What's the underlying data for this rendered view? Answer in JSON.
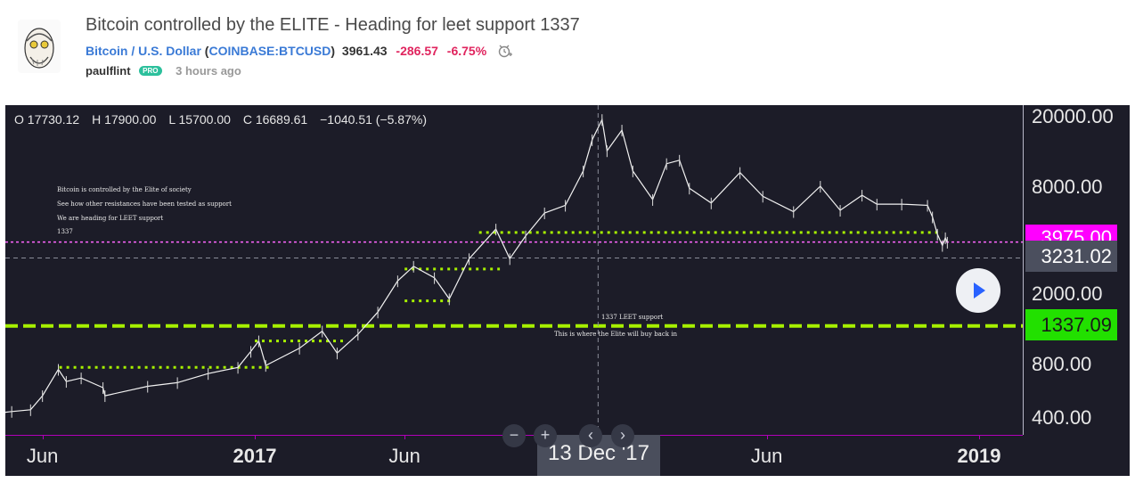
{
  "header": {
    "title": "Bitcoin controlled by the ELITE - Heading for leet support 1337",
    "symbol_name": "Bitcoin / U.S. Dollar",
    "exchange_symbol": "COINBASE:BTCUSD",
    "open_paren": "(",
    "close_paren": ")",
    "price": "3961.43",
    "change": "-286.57",
    "change_pct": "-6.75%",
    "author": "paulflint",
    "badge": "PRO",
    "time_ago": "3 hours ago"
  },
  "colors": {
    "accent_blue": "#3a7ad6",
    "negative": "#e0245e",
    "pro_badge": "#2cc09c",
    "chart_bg": "#1c1c28",
    "support_green": "#a6f000",
    "magenta": "#ff00ff"
  },
  "chart_data": {
    "type": "line",
    "scale": "log",
    "ohlc": {
      "o": "O 17730.12",
      "h": "H 17900.00",
      "l": "L 15700.00",
      "c": "C 16689.61",
      "chg": "−1040.51 (−5.87%)"
    },
    "y_ticks": [
      "20000.00",
      "8000.00",
      "2000.00",
      "800.00",
      "400.00"
    ],
    "y_tick_values": [
      20000,
      8000,
      2000,
      800,
      400
    ],
    "ylim": [
      280,
      25000
    ],
    "x_ticks": [
      {
        "label": "Jun",
        "date": "2016-06-01",
        "bold": false
      },
      {
        "label": "2017",
        "date": "2017-01-01",
        "bold": true
      },
      {
        "label": "Jun",
        "date": "2017-06-01",
        "bold": false
      },
      {
        "label": "Jun",
        "date": "2018-06-01",
        "bold": false
      },
      {
        "label": "2019",
        "date": "2019-01-01",
        "bold": true
      }
    ],
    "cursor_date": "13 Dec '17",
    "series": [
      {
        "points": [
          [
            "2016-04-01",
            420
          ],
          [
            "2016-05-01",
            440
          ],
          [
            "2016-05-20",
            450
          ],
          [
            "2016-06-01",
            540
          ],
          [
            "2016-06-17",
            760
          ],
          [
            "2016-06-25",
            650
          ],
          [
            "2016-07-10",
            680
          ],
          [
            "2016-08-01",
            600
          ],
          [
            "2016-08-03",
            540
          ],
          [
            "2016-09-15",
            610
          ],
          [
            "2016-10-15",
            640
          ],
          [
            "2016-11-15",
            720
          ],
          [
            "2016-12-15",
            780
          ],
          [
            "2016-12-28",
            960
          ],
          [
            "2017-01-05",
            1100
          ],
          [
            "2017-01-12",
            800
          ],
          [
            "2017-02-15",
            1000
          ],
          [
            "2017-03-10",
            1250
          ],
          [
            "2017-03-25",
            940
          ],
          [
            "2017-04-15",
            1200
          ],
          [
            "2017-05-05",
            1600
          ],
          [
            "2017-05-25",
            2400
          ],
          [
            "2017-06-10",
            2900
          ],
          [
            "2017-07-01",
            2500
          ],
          [
            "2017-07-16",
            1900
          ],
          [
            "2017-08-05",
            3200
          ],
          [
            "2017-09-01",
            4700
          ],
          [
            "2017-09-15",
            3200
          ],
          [
            "2017-10-01",
            4300
          ],
          [
            "2017-10-20",
            5800
          ],
          [
            "2017-11-10",
            6400
          ],
          [
            "2017-11-28",
            10000
          ],
          [
            "2017-12-07",
            15000
          ],
          [
            "2017-12-17",
            19500
          ],
          [
            "2017-12-22",
            13000
          ],
          [
            "2018-01-06",
            17000
          ],
          [
            "2018-01-17",
            10000
          ],
          [
            "2018-02-06",
            6900
          ],
          [
            "2018-02-20",
            11000
          ],
          [
            "2018-03-05",
            11500
          ],
          [
            "2018-03-15",
            8000
          ],
          [
            "2018-04-06",
            6600
          ],
          [
            "2018-05-05",
            9800
          ],
          [
            "2018-05-28",
            7200
          ],
          [
            "2018-06-28",
            5900
          ],
          [
            "2018-07-25",
            8200
          ],
          [
            "2018-08-14",
            6000
          ],
          [
            "2018-09-05",
            7300
          ],
          [
            "2018-09-20",
            6500
          ],
          [
            "2018-10-15",
            6500
          ],
          [
            "2018-11-10",
            6400
          ],
          [
            "2018-11-15",
            5500
          ],
          [
            "2018-11-20",
            4400
          ],
          [
            "2018-11-25",
            3800
          ],
          [
            "2018-11-28",
            4200
          ],
          [
            "2018-11-30",
            3961.43
          ]
        ]
      }
    ],
    "support_lines": [
      {
        "from": "2016-06-18",
        "to": "2017-01-15",
        "value": 780
      },
      {
        "from": "2017-01-01",
        "to": "2017-04-01",
        "value": 1100
      },
      {
        "from": "2017-06-01",
        "to": "2017-07-20",
        "value": 1850
      },
      {
        "from": "2017-06-01",
        "to": "2017-09-05",
        "value": 2800
      },
      {
        "from": "2017-08-15",
        "to": "2018-11-25",
        "value": 4500
      }
    ],
    "leet_support": 1337.09,
    "current_line": 3975.0,
    "current_dashed": 3231.02,
    "price_labels": {
      "top": "3975.00",
      "middle": "3231.02",
      "leet": "1337.09"
    },
    "notes": {
      "line1": "Bitcoin is controlled by the Elite of society",
      "line2": "See how other resistances have been tested as support",
      "line3": "We are heading for LEET support",
      "line4": "1337",
      "leet_title": "1337 LEET support",
      "leet_sub": "This is where the Elite will buy back in"
    }
  }
}
